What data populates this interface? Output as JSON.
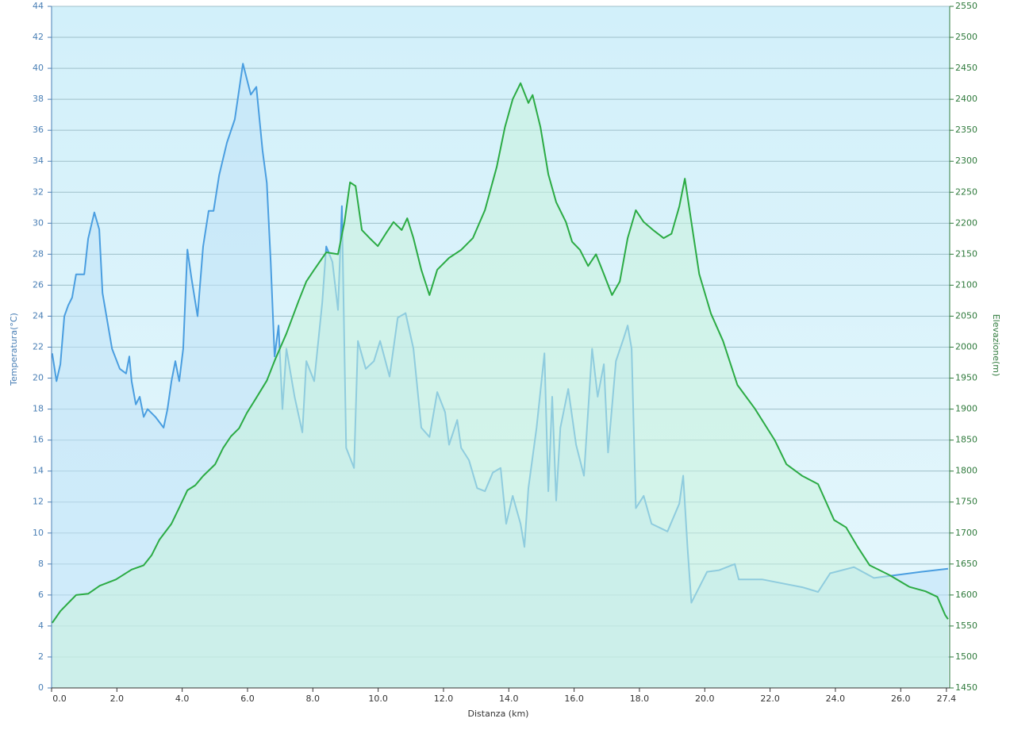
{
  "chart_data": {
    "type": "area",
    "x_label": "Distanza  (km)",
    "y_label": "Temperatura(°C)",
    "y2_label": "Elevazione(m)",
    "xlim": [
      0,
      27.5
    ],
    "ylim": [
      0,
      44
    ],
    "y2lim": [
      1450,
      2550
    ],
    "grid": true,
    "xticks": [
      {
        "value": 0,
        "label": "0.0"
      },
      {
        "value": 2,
        "label": "2.0"
      },
      {
        "value": 4,
        "label": "4.0"
      },
      {
        "value": 6,
        "label": "6.0"
      },
      {
        "value": 8,
        "label": "8.0"
      },
      {
        "value": 10,
        "label": "10.0"
      },
      {
        "value": 12,
        "label": "12.0"
      },
      {
        "value": 14,
        "label": "14.0"
      },
      {
        "value": 16,
        "label": "16.0"
      },
      {
        "value": 18,
        "label": "18.0"
      },
      {
        "value": 20,
        "label": "20.0"
      },
      {
        "value": 22,
        "label": "22.0"
      },
      {
        "value": 24,
        "label": "24.0"
      },
      {
        "value": 26,
        "label": "26.0"
      },
      {
        "value": 27.4,
        "label": "27.4"
      }
    ],
    "yticks": [
      0,
      2,
      4,
      6,
      8,
      10,
      12,
      14,
      16,
      18,
      20,
      22,
      24,
      26,
      28,
      30,
      32,
      34,
      36,
      38,
      40,
      42,
      44
    ],
    "y2ticks": [
      1450,
      1500,
      1550,
      1600,
      1650,
      1700,
      1750,
      1800,
      1850,
      1900,
      1950,
      2000,
      2050,
      2100,
      2150,
      2200,
      2250,
      2300,
      2350,
      2400,
      2450,
      2500,
      2550
    ],
    "series": [
      {
        "color": "#4a9ee0",
        "fill": "#bfe2f8",
        "axis": "y",
        "x": [
          0.02,
          0.15,
          0.27,
          0.39,
          0.51,
          0.63,
          0.75,
          1.0,
          1.12,
          1.31,
          1.46,
          1.56,
          1.73,
          1.85,
          2.09,
          2.28,
          2.38,
          2.45,
          2.58,
          2.7,
          2.82,
          2.94,
          3.18,
          3.43,
          3.55,
          3.67,
          3.79,
          3.91,
          4.03,
          4.16,
          4.28,
          4.47,
          4.64,
          4.81,
          4.96,
          5.13,
          5.37,
          5.61,
          5.86,
          6.1,
          6.27,
          6.46,
          6.59,
          6.71,
          6.83,
          6.95,
          7.07,
          7.19,
          7.44,
          7.68,
          7.8,
          8.04,
          8.29,
          8.41,
          8.6,
          8.77,
          8.89,
          9.02,
          9.26,
          9.38,
          9.62,
          9.87,
          10.06,
          10.35,
          10.6,
          10.84,
          11.08,
          11.32,
          11.57,
          11.81,
          12.05,
          12.17,
          12.42,
          12.54,
          12.78,
          13.03,
          13.27,
          13.51,
          13.75,
          13.92,
          14.12,
          14.36,
          14.48,
          14.6,
          14.85,
          15.09,
          15.21,
          15.33,
          15.45,
          15.58,
          15.82,
          16.06,
          16.3,
          16.55,
          16.72,
          16.91,
          17.04,
          17.28,
          17.52,
          17.64,
          17.76,
          17.89,
          18.13,
          18.37,
          18.86,
          19.22,
          19.34,
          19.47,
          19.59,
          19.83,
          20.07,
          20.44,
          20.92,
          21.04,
          21.77,
          22.5,
          22.99,
          23.47,
          23.84,
          24.57,
          25.18,
          25.91,
          26.63,
          27.45
        ],
        "values": [
          21.6,
          19.8,
          20.9,
          24,
          24.7,
          25.2,
          26.7,
          26.7,
          29,
          30.7,
          29.6,
          25.5,
          23.4,
          21.9,
          20.6,
          20.3,
          21.4,
          19.8,
          18.3,
          18.8,
          17.5,
          18,
          17.5,
          16.8,
          18,
          19.8,
          21.1,
          19.8,
          21.9,
          28.3,
          26.5,
          24,
          28.5,
          30.8,
          30.8,
          33.1,
          35.2,
          36.7,
          40.3,
          38.3,
          38.8,
          34.7,
          32.6,
          27.5,
          21.4,
          23.4,
          18,
          21.9,
          18.8,
          16.5,
          21.1,
          19.8,
          24.9,
          28.5,
          27.5,
          24.4,
          31.1,
          15.5,
          14.2,
          22.4,
          20.6,
          21.1,
          22.4,
          20.1,
          23.9,
          24.2,
          21.9,
          16.8,
          16.2,
          19.1,
          17.8,
          15.7,
          17.3,
          15.5,
          14.7,
          12.9,
          12.7,
          13.9,
          14.2,
          10.6,
          12.4,
          10.6,
          9.1,
          12.9,
          16.8,
          21.6,
          12.7,
          18.8,
          12.1,
          16.8,
          19.3,
          15.7,
          13.7,
          21.9,
          18.8,
          20.9,
          15.2,
          21.1,
          22.6,
          23.4,
          21.9,
          11.6,
          12.4,
          10.6,
          10.1,
          11.9,
          13.7,
          9.1,
          5.5,
          6.5,
          7.5,
          7.6,
          8.0,
          7,
          7,
          6.7,
          6.5,
          6.2,
          7.4,
          7.8,
          7.1,
          7.3,
          7.5,
          7.7
        ]
      },
      {
        "color": "#2bab44",
        "fill": "#c8f3dc",
        "axis": "y2",
        "x": [
          0.02,
          0.27,
          0.51,
          0.75,
          1.12,
          1.48,
          1.97,
          2.45,
          2.82,
          3.06,
          3.3,
          3.67,
          3.91,
          4.16,
          4.4,
          4.64,
          5.01,
          5.25,
          5.49,
          5.74,
          5.98,
          6.22,
          6.59,
          6.83,
          7.19,
          7.56,
          7.8,
          8.04,
          8.41,
          8.77,
          8.97,
          9.14,
          9.31,
          9.5,
          9.74,
          9.99,
          10.23,
          10.47,
          10.72,
          10.89,
          11.08,
          11.32,
          11.57,
          11.81,
          12.17,
          12.54,
          12.9,
          13.27,
          13.63,
          13.88,
          14.12,
          14.36,
          14.6,
          14.73,
          14.97,
          15.21,
          15.45,
          15.75,
          15.94,
          16.18,
          16.43,
          16.67,
          16.91,
          17.16,
          17.4,
          17.64,
          17.89,
          18.13,
          18.42,
          18.74,
          18.98,
          19.22,
          19.39,
          19.59,
          19.83,
          20.19,
          20.56,
          21.0,
          21.53,
          22.14,
          22.5,
          22.99,
          23.47,
          23.96,
          24.33,
          24.69,
          25.05,
          25.66,
          26.27,
          26.76,
          27.12,
          27.36,
          27.45
        ],
        "values": [
          1555,
          1574,
          1587,
          1600,
          1602,
          1615,
          1625,
          1641,
          1648,
          1664,
          1689,
          1715,
          1741,
          1769,
          1777,
          1792,
          1811,
          1837,
          1856,
          1869,
          1894,
          1914,
          1946,
          1978,
          2022,
          2074,
          2106,
          2125,
          2153,
          2150,
          2202,
          2266,
          2260,
          2189,
          2176,
          2163,
          2183,
          2202,
          2189,
          2208,
          2176,
          2125,
          2084,
          2125,
          2144,
          2157,
          2176,
          2221,
          2291,
          2355,
          2400,
          2426,
          2394,
          2407,
          2355,
          2279,
          2234,
          2202,
          2170,
          2157,
          2131,
          2150,
          2118,
          2084,
          2106,
          2176,
          2221,
          2202,
          2189,
          2176,
          2183,
          2227,
          2272,
          2202,
          2118,
          2054,
          2010,
          1939,
          1901,
          1850,
          1811,
          1792,
          1779,
          1721,
          1709,
          1677,
          1648,
          1632,
          1613,
          1606,
          1597,
          1568,
          1561
        ]
      }
    ]
  }
}
